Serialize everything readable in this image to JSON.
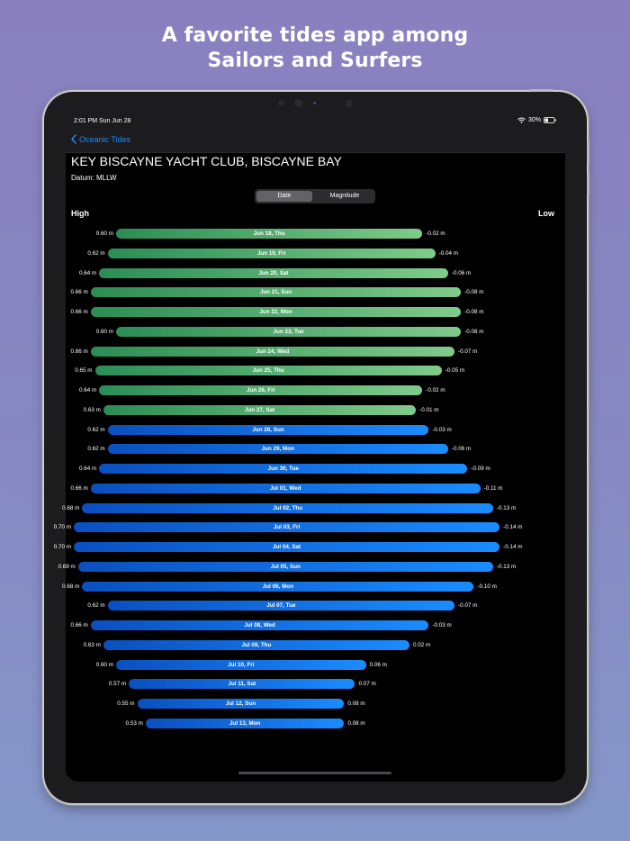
{
  "promo": {
    "line1": "A favorite tides app among",
    "line2": "Sailors and Surfers"
  },
  "status_bar": {
    "time": "2:01 PM  Sun Jun 28",
    "battery": "30%"
  },
  "nav": {
    "back_label": "Oceanic Tides"
  },
  "station": {
    "title": "KEY BISCAYNE YACHT CLUB, BISCAYNE BAY",
    "datum": "Datum: MLLW"
  },
  "segments": [
    {
      "label": "Date",
      "selected": true
    },
    {
      "label": "Magnitude",
      "selected": false
    }
  ],
  "labels": {
    "high": "High",
    "low": "Low"
  },
  "colors": {
    "green_start": "#2b8d55",
    "green_end": "#7fcb8a",
    "blue_start": "#0a4fbf",
    "blue_end": "#1a8cff",
    "accent": "#1f8bff"
  },
  "chart_data": {
    "type": "bar",
    "title": "KEY BISCAYNE YACHT CLUB, BISCAYNE BAY",
    "xlabel_left": "High",
    "xlabel_right": "Low",
    "unit": "m",
    "series_groups": [
      {
        "name": "past",
        "color": "green",
        "from": "Jun 18, Thu",
        "to": "Jun 27, Sat"
      },
      {
        "name": "current_and_future",
        "color": "blue",
        "from": "Jun 28, Sun",
        "to": "Jul 13, Mon"
      }
    ],
    "rows": [
      {
        "date": "Jun 18, Thu",
        "high": 0.6,
        "low": -0.02,
        "high_label": "0.60 m",
        "low_label": "-0.02 m",
        "group": "past"
      },
      {
        "date": "Jun 19, Fri",
        "high": 0.62,
        "low": -0.04,
        "high_label": "0.62 m",
        "low_label": "-0.04 m",
        "group": "past"
      },
      {
        "date": "Jun 20, Sat",
        "high": 0.64,
        "low": -0.06,
        "high_label": "0.64 m",
        "low_label": "-0.06 m",
        "group": "past"
      },
      {
        "date": "Jun 21, Sun",
        "high": 0.66,
        "low": -0.08,
        "high_label": "0.66 m",
        "low_label": "-0.08 m",
        "group": "past"
      },
      {
        "date": "Jun 22, Mon",
        "high": 0.66,
        "low": -0.08,
        "high_label": "0.66 m",
        "low_label": "-0.08 m",
        "group": "past"
      },
      {
        "date": "Jun 23, Tue",
        "high": 0.6,
        "low": -0.08,
        "high_label": "0.60 m",
        "low_label": "-0.08 m",
        "group": "past"
      },
      {
        "date": "Jun 24, Wed",
        "high": 0.66,
        "low": -0.07,
        "high_label": "0.66 m",
        "low_label": "-0.07 m",
        "group": "past"
      },
      {
        "date": "Jun 25, Thu",
        "high": 0.65,
        "low": -0.05,
        "high_label": "0.65 m",
        "low_label": "-0.05 m",
        "group": "past"
      },
      {
        "date": "Jun 26, Fri",
        "high": 0.64,
        "low": -0.02,
        "high_label": "0.64 m",
        "low_label": "-0.02 m",
        "group": "past"
      },
      {
        "date": "Jun 27, Sat",
        "high": 0.63,
        "low": -0.01,
        "high_label": "0.63 m",
        "low_label": "-0.01 m",
        "group": "past"
      },
      {
        "date": "Jun 28, Sun",
        "high": 0.62,
        "low": -0.03,
        "high_label": "0.62 m",
        "low_label": "-0.03 m",
        "group": "current_and_future"
      },
      {
        "date": "Jun 29, Mon",
        "high": 0.62,
        "low": -0.06,
        "high_label": "0.62 m",
        "low_label": "-0.06 m",
        "group": "current_and_future"
      },
      {
        "date": "Jun 30, Tue",
        "high": 0.64,
        "low": -0.09,
        "high_label": "0.64 m",
        "low_label": "-0.09 m",
        "group": "current_and_future"
      },
      {
        "date": "Jul 01, Wed",
        "high": 0.66,
        "low": -0.11,
        "high_label": "0.66 m",
        "low_label": "-0.11 m",
        "group": "current_and_future"
      },
      {
        "date": "Jul 02, Thu",
        "high": 0.68,
        "low": -0.13,
        "high_label": "0.68 m",
        "low_label": "-0.13 m",
        "group": "current_and_future"
      },
      {
        "date": "Jul 03, Fri",
        "high": 0.7,
        "low": -0.14,
        "high_label": "0.70 m",
        "low_label": "-0.14 m",
        "group": "current_and_future"
      },
      {
        "date": "Jul 04, Sat",
        "high": 0.7,
        "low": -0.14,
        "high_label": "0.70 m",
        "low_label": "-0.14 m",
        "group": "current_and_future"
      },
      {
        "date": "Jul 05, Sun",
        "high": 0.69,
        "low": -0.13,
        "high_label": "0.69 m",
        "low_label": "-0.13 m",
        "group": "current_and_future"
      },
      {
        "date": "Jul 06, Mon",
        "high": 0.68,
        "low": -0.1,
        "high_label": "0.68 m",
        "low_label": "-0.10 m",
        "group": "current_and_future"
      },
      {
        "date": "Jul 07, Tue",
        "high": 0.62,
        "low": -0.07,
        "high_label": "0.62 m",
        "low_label": "-0.07 m",
        "group": "current_and_future"
      },
      {
        "date": "Jul 08, Wed",
        "high": 0.66,
        "low": -0.03,
        "high_label": "0.66 m",
        "low_label": "-0.03 m",
        "group": "current_and_future"
      },
      {
        "date": "Jul 09, Thu",
        "high": 0.63,
        "low": 0.02,
        "high_label": "0.63 m",
        "low_label": "0.02 m",
        "group": "current_and_future"
      },
      {
        "date": "Jul 10, Fri",
        "high": 0.6,
        "low": 0.06,
        "high_label": "0.60 m",
        "low_label": "0.06 m",
        "group": "current_and_future"
      },
      {
        "date": "Jul 11, Sat",
        "high": 0.57,
        "low": 0.07,
        "high_label": "0.57 m",
        "low_label": "0.07 m",
        "group": "current_and_future"
      },
      {
        "date": "Jul 12, Sun",
        "high": 0.55,
        "low": 0.08,
        "high_label": "0.55 m",
        "low_label": "0.08 m",
        "group": "current_and_future"
      },
      {
        "date": "Jul 13, Mon",
        "high": 0.53,
        "low": 0.08,
        "high_label": "0.53 m",
        "low_label": "0.08 m",
        "group": "current_and_future"
      }
    ]
  }
}
